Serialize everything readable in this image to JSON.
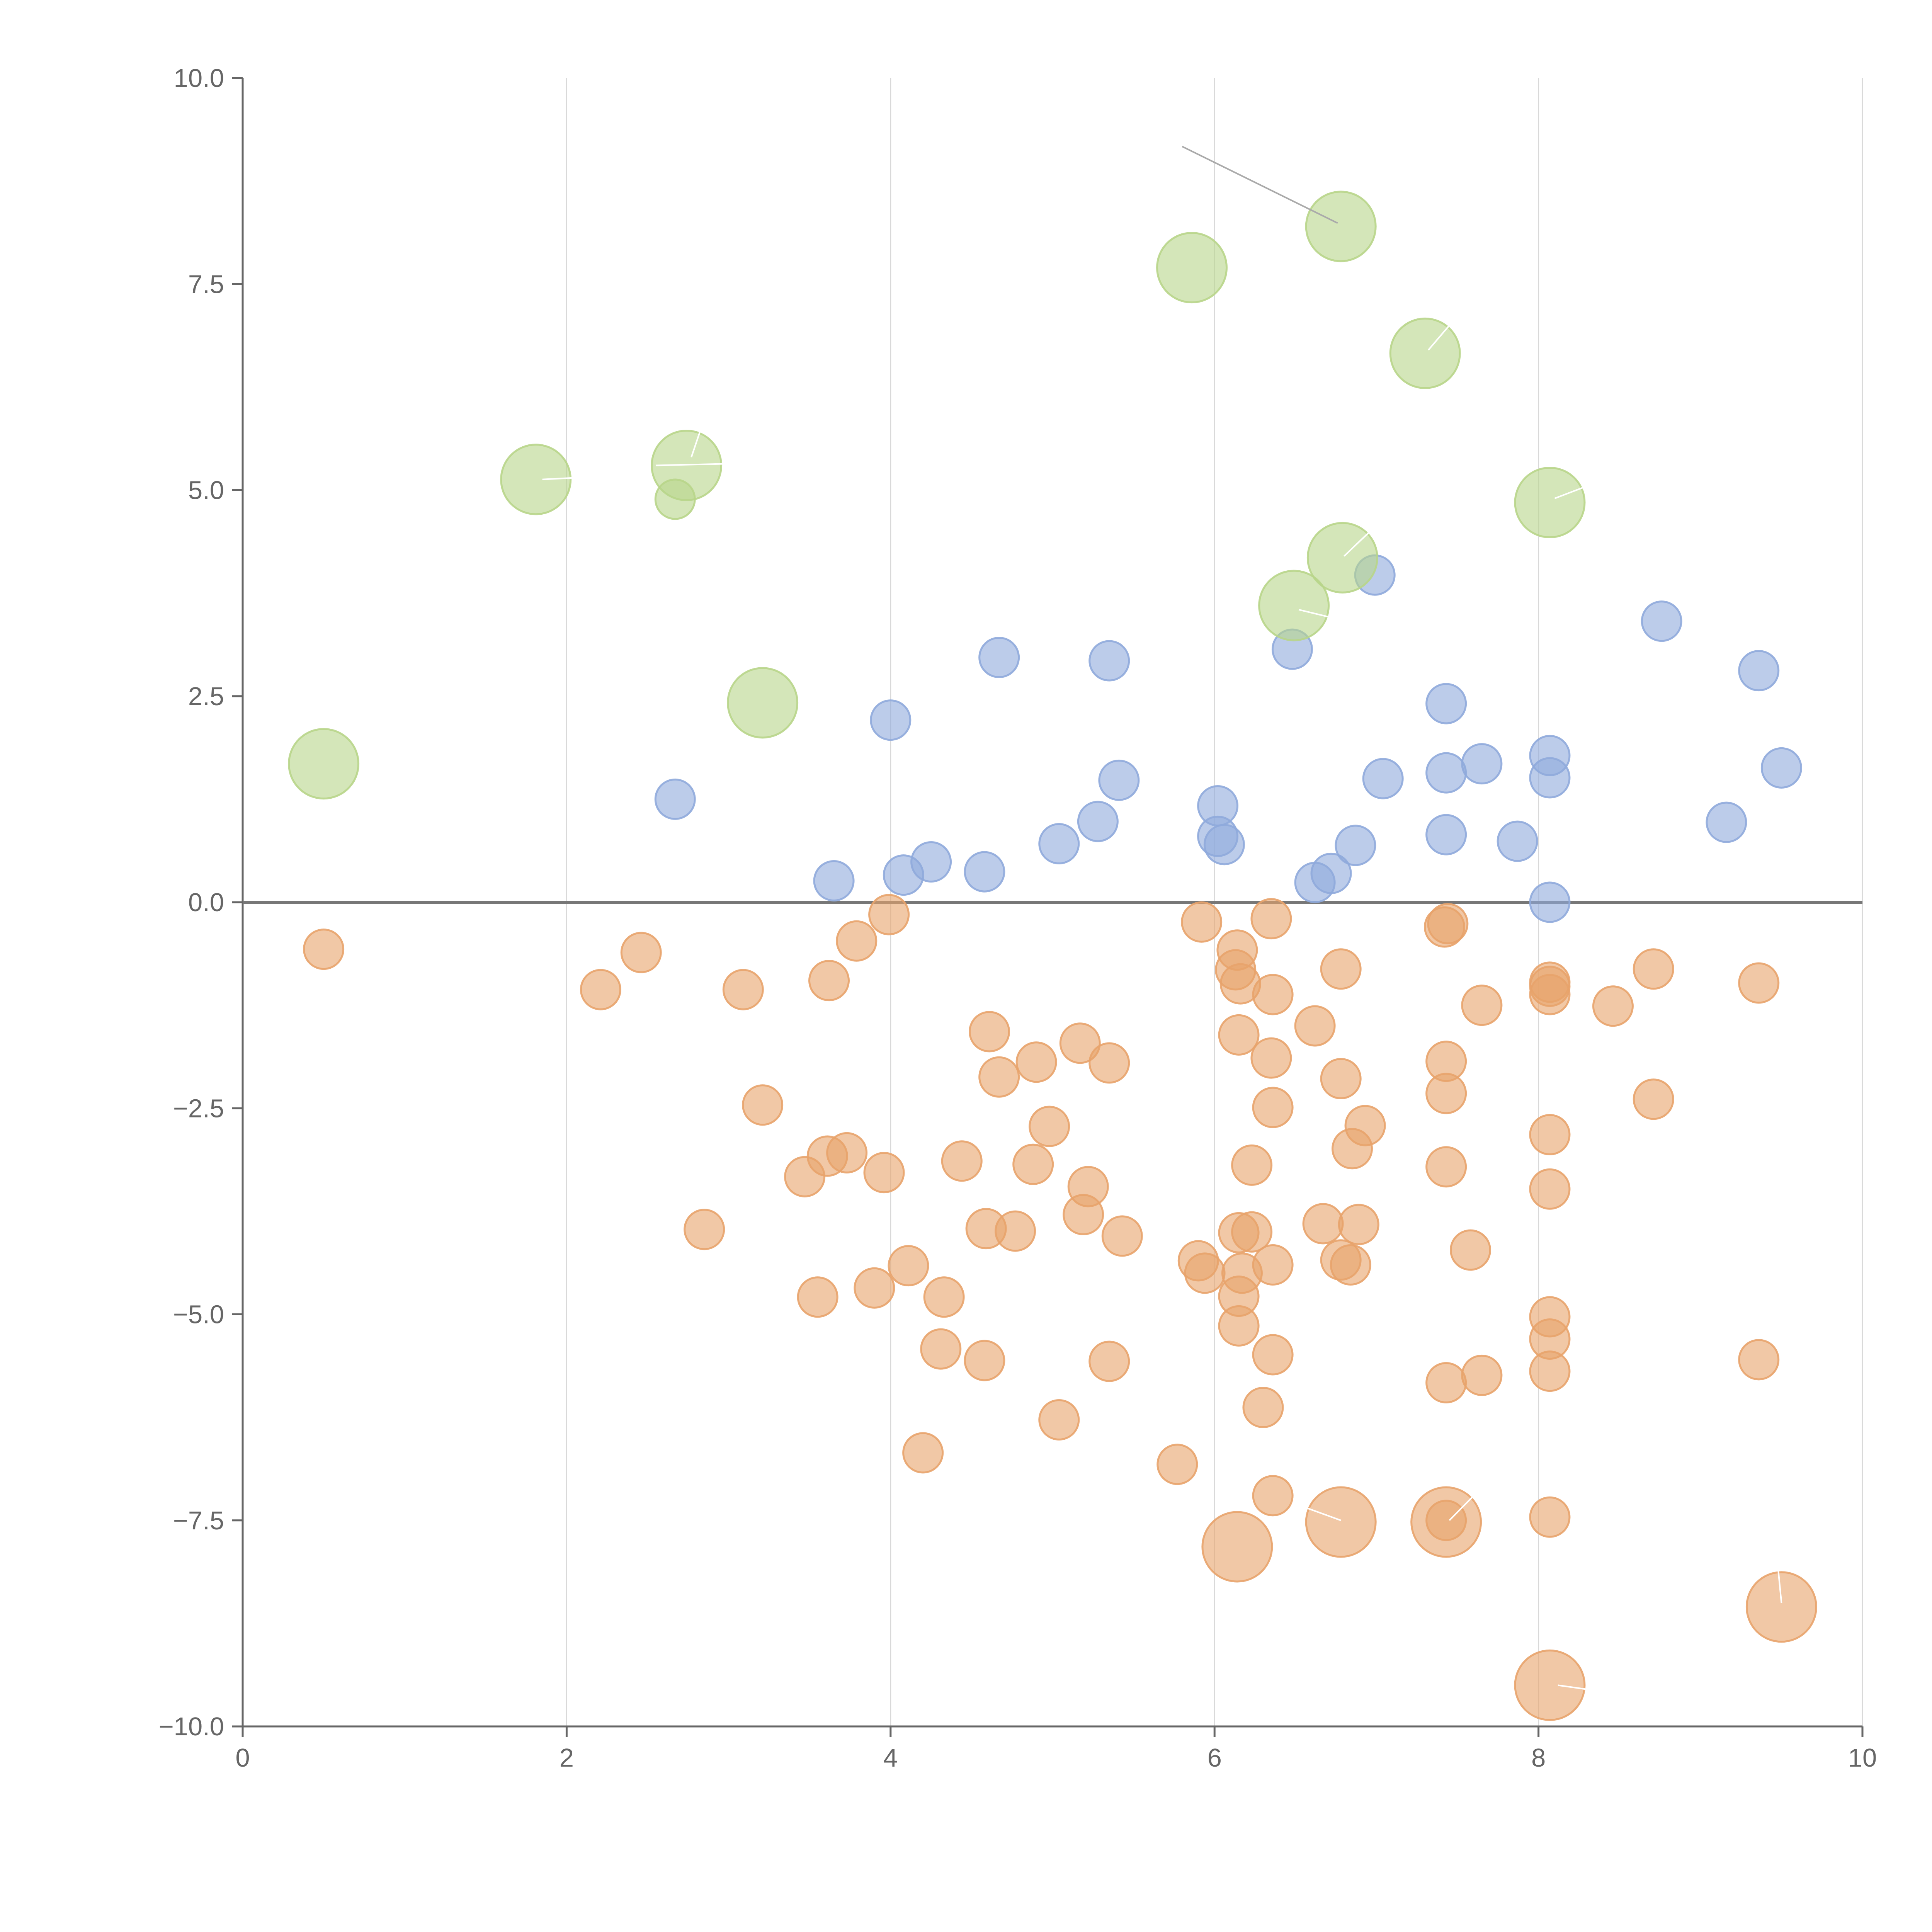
{
  "chart_data": {
    "type": "scatter",
    "title": "",
    "xlabel": "",
    "ylabel": "",
    "xlim": [
      0,
      10
    ],
    "ylim": [
      -10,
      10
    ],
    "x_ticks": [
      0,
      2,
      4,
      6,
      8,
      10
    ],
    "x_tick_labels": [
      "0",
      "2",
      "4",
      "6",
      "8",
      "10"
    ],
    "y_ticks": [
      10,
      7.5,
      5,
      2.5,
      0,
      -2.5,
      -5,
      -7.5,
      -10
    ],
    "y_tick_labels": [
      "10.0",
      "7.5",
      "5.0",
      "2.5",
      "0.0",
      "−2.5",
      "−5.0",
      "−7.5",
      "−10.0"
    ],
    "grid": "vertical",
    "zero_line": true,
    "legend": "none",
    "series": [
      {
        "name": "orange",
        "color": "#E8A36B",
        "points": [
          {
            "x": 0.5,
            "y": -0.57,
            "size": 1
          },
          {
            "x": 2.21,
            "y": -1.06,
            "size": 1
          },
          {
            "x": 2.46,
            "y": -0.61,
            "size": 1
          },
          {
            "x": 3.09,
            "y": -1.06,
            "size": 1
          },
          {
            "x": 3.62,
            "y": -0.95,
            "size": 1
          },
          {
            "x": 3.79,
            "y": -0.47,
            "size": 1
          },
          {
            "x": 3.99,
            "y": -0.15,
            "size": 1
          },
          {
            "x": 3.21,
            "y": -2.46,
            "size": 1
          },
          {
            "x": 2.85,
            "y": -3.97,
            "size": 1
          },
          {
            "x": 3.47,
            "y": -3.33,
            "size": 1
          },
          {
            "x": 3.61,
            "y": -3.08,
            "size": 1
          },
          {
            "x": 3.73,
            "y": -3.04,
            "size": 1
          },
          {
            "x": 3.96,
            "y": -3.28,
            "size": 1
          },
          {
            "x": 3.55,
            "y": -4.79,
            "size": 1
          },
          {
            "x": 3.9,
            "y": -4.68,
            "size": 1
          },
          {
            "x": 4.11,
            "y": -4.41,
            "size": 1
          },
          {
            "x": 4.33,
            "y": -4.79,
            "size": 1
          },
          {
            "x": 4.31,
            "y": -5.42,
            "size": 1
          },
          {
            "x": 4.2,
            "y": -6.68,
            "size": 1
          },
          {
            "x": 4.44,
            "y": -3.14,
            "size": 1
          },
          {
            "x": 4.61,
            "y": -1.57,
            "size": 1
          },
          {
            "x": 4.67,
            "y": -2.12,
            "size": 1
          },
          {
            "x": 4.9,
            "y": -1.94,
            "size": 1
          },
          {
            "x": 4.98,
            "y": -2.72,
            "size": 1
          },
          {
            "x": 4.88,
            "y": -3.18,
            "size": 1
          },
          {
            "x": 4.59,
            "y": -3.96,
            "size": 1
          },
          {
            "x": 4.77,
            "y": -3.99,
            "size": 1
          },
          {
            "x": 4.58,
            "y": -5.56,
            "size": 1
          },
          {
            "x": 5.04,
            "y": -6.28,
            "size": 1
          },
          {
            "x": 5.17,
            "y": -1.71,
            "size": 1
          },
          {
            "x": 5.35,
            "y": -1.95,
            "size": 1
          },
          {
            "x": 5.22,
            "y": -3.45,
            "size": 1
          },
          {
            "x": 5.19,
            "y": -3.79,
            "size": 1
          },
          {
            "x": 5.43,
            "y": -4.05,
            "size": 1
          },
          {
            "x": 5.35,
            "y": -5.57,
            "size": 1
          },
          {
            "x": 5.77,
            "y": -6.82,
            "size": 1
          },
          {
            "x": 5.92,
            "y": -0.24,
            "size": 1
          },
          {
            "x": 6.14,
            "y": -0.58,
            "size": 1
          },
          {
            "x": 6.13,
            "y": -0.82,
            "size": 1
          },
          {
            "x": 6.16,
            "y": -0.99,
            "size": 1
          },
          {
            "x": 6.35,
            "y": -0.2,
            "size": 1
          },
          {
            "x": 6.36,
            "y": -1.12,
            "size": 1
          },
          {
            "x": 6.15,
            "y": -1.61,
            "size": 1
          },
          {
            "x": 6.35,
            "y": -1.89,
            "size": 1
          },
          {
            "x": 6.36,
            "y": -2.49,
            "size": 1
          },
          {
            "x": 6.23,
            "y": -3.19,
            "size": 1
          },
          {
            "x": 6.15,
            "y": -4.01,
            "size": 1
          },
          {
            "x": 6.23,
            "y": -4.0,
            "size": 1
          },
          {
            "x": 5.9,
            "y": -4.35,
            "size": 1
          },
          {
            "x": 5.94,
            "y": -4.5,
            "size": 1
          },
          {
            "x": 6.17,
            "y": -4.5,
            "size": 1
          },
          {
            "x": 6.36,
            "y": -4.4,
            "size": 1
          },
          {
            "x": 6.15,
            "y": -4.78,
            "size": 1
          },
          {
            "x": 6.15,
            "y": -5.14,
            "size": 1
          },
          {
            "x": 6.36,
            "y": -5.49,
            "size": 1
          },
          {
            "x": 6.3,
            "y": -6.13,
            "size": 1
          },
          {
            "x": 6.36,
            "y": -7.2,
            "size": 1
          },
          {
            "x": 6.62,
            "y": -1.5,
            "size": 1
          },
          {
            "x": 6.78,
            "y": -0.81,
            "size": 1
          },
          {
            "x": 6.78,
            "y": -2.14,
            "size": 1
          },
          {
            "x": 6.93,
            "y": -2.71,
            "size": 1
          },
          {
            "x": 6.85,
            "y": -2.99,
            "size": 1
          },
          {
            "x": 6.67,
            "y": -3.9,
            "size": 1
          },
          {
            "x": 6.89,
            "y": -3.91,
            "size": 1
          },
          {
            "x": 6.78,
            "y": -4.34,
            "size": 1
          },
          {
            "x": 6.84,
            "y": -4.4,
            "size": 1
          },
          {
            "x": 7.42,
            "y": -0.3,
            "size": 1
          },
          {
            "x": 7.44,
            "y": -0.26,
            "size": 1
          },
          {
            "x": 7.65,
            "y": -1.25,
            "size": 1
          },
          {
            "x": 7.43,
            "y": -1.93,
            "size": 1
          },
          {
            "x": 7.43,
            "y": -2.32,
            "size": 1
          },
          {
            "x": 7.43,
            "y": -3.21,
            "size": 1
          },
          {
            "x": 7.58,
            "y": -4.22,
            "size": 1
          },
          {
            "x": 7.65,
            "y": -5.74,
            "size": 1
          },
          {
            "x": 7.43,
            "y": -5.83,
            "size": 1
          },
          {
            "x": 7.43,
            "y": -7.5,
            "size": 1
          },
          {
            "x": 8.07,
            "y": -0.97,
            "size": 1
          },
          {
            "x": 8.07,
            "y": -1.02,
            "size": 1
          },
          {
            "x": 8.07,
            "y": -1.12,
            "size": 1
          },
          {
            "x": 8.07,
            "y": -2.82,
            "size": 1
          },
          {
            "x": 8.07,
            "y": -3.48,
            "size": 1
          },
          {
            "x": 8.07,
            "y": -5.03,
            "size": 1
          },
          {
            "x": 8.07,
            "y": -5.3,
            "size": 1
          },
          {
            "x": 8.07,
            "y": -5.69,
            "size": 1
          },
          {
            "x": 8.07,
            "y": -7.46,
            "size": 1
          },
          {
            "x": 8.46,
            "y": -1.26,
            "size": 1
          },
          {
            "x": 8.71,
            "y": -0.81,
            "size": 1
          },
          {
            "x": 8.71,
            "y": -2.39,
            "size": 1
          },
          {
            "x": 9.36,
            "y": -0.98,
            "size": 1
          },
          {
            "x": 9.36,
            "y": -5.55,
            "size": 1
          },
          {
            "x": 6.14,
            "y": -7.82,
            "size": 2
          },
          {
            "x": 6.78,
            "y": -7.52,
            "size": 2
          },
          {
            "x": 7.43,
            "y": -7.52,
            "size": 2
          },
          {
            "x": 9.5,
            "y": -8.55,
            "size": 2
          },
          {
            "x": 8.07,
            "y": -9.5,
            "size": 2
          }
        ]
      },
      {
        "name": "blue",
        "color": "#8FAADC",
        "points": [
          {
            "x": 2.67,
            "y": 1.25,
            "size": 1
          },
          {
            "x": 3.65,
            "y": 0.26,
            "size": 1
          },
          {
            "x": 4.08,
            "y": 0.33,
            "size": 1
          },
          {
            "x": 4.25,
            "y": 0.49,
            "size": 1
          },
          {
            "x": 4.0,
            "y": 2.21,
            "size": 1
          },
          {
            "x": 4.58,
            "y": 0.37,
            "size": 1
          },
          {
            "x": 4.67,
            "y": 2.97,
            "size": 1
          },
          {
            "x": 5.04,
            "y": 0.71,
            "size": 1
          },
          {
            "x": 5.28,
            "y": 0.98,
            "size": 1
          },
          {
            "x": 5.41,
            "y": 1.48,
            "size": 1
          },
          {
            "x": 5.35,
            "y": 2.93,
            "size": 1
          },
          {
            "x": 6.02,
            "y": 1.17,
            "size": 1
          },
          {
            "x": 6.02,
            "y": 0.8,
            "size": 1
          },
          {
            "x": 6.06,
            "y": 0.7,
            "size": 1
          },
          {
            "x": 6.48,
            "y": 3.07,
            "size": 1
          },
          {
            "x": 6.62,
            "y": 0.24,
            "size": 1
          },
          {
            "x": 6.72,
            "y": 0.35,
            "size": 1
          },
          {
            "x": 6.87,
            "y": 0.69,
            "size": 1
          },
          {
            "x": 6.99,
            "y": 3.97,
            "size": 1
          },
          {
            "x": 7.04,
            "y": 1.5,
            "size": 1
          },
          {
            "x": 7.43,
            "y": 2.41,
            "size": 1
          },
          {
            "x": 7.43,
            "y": 1.57,
            "size": 1
          },
          {
            "x": 7.43,
            "y": 0.82,
            "size": 1
          },
          {
            "x": 7.65,
            "y": 1.68,
            "size": 1
          },
          {
            "x": 7.87,
            "y": 0.74,
            "size": 1
          },
          {
            "x": 8.07,
            "y": 1.78,
            "size": 1
          },
          {
            "x": 8.07,
            "y": 1.51,
            "size": 1
          },
          {
            "x": 8.07,
            "y": 0.0,
            "size": 1
          },
          {
            "x": 8.76,
            "y": 3.41,
            "size": 1
          },
          {
            "x": 9.16,
            "y": 0.97,
            "size": 1
          },
          {
            "x": 9.36,
            "y": 2.81,
            "size": 1
          },
          {
            "x": 9.5,
            "y": 1.63,
            "size": 1
          }
        ]
      },
      {
        "name": "green",
        "color": "#B8D58A",
        "points": [
          {
            "x": 0.5,
            "y": 1.68,
            "size": 2
          },
          {
            "x": 1.81,
            "y": 5.13,
            "size": 2
          },
          {
            "x": 2.74,
            "y": 5.3,
            "size": 2
          },
          {
            "x": 2.67,
            "y": 4.89,
            "size": 1
          },
          {
            "x": 3.21,
            "y": 2.42,
            "size": 2
          },
          {
            "x": 5.86,
            "y": 7.7,
            "size": 2
          },
          {
            "x": 6.78,
            "y": 8.2,
            "size": 2
          },
          {
            "x": 7.3,
            "y": 6.66,
            "size": 2
          },
          {
            "x": 8.07,
            "y": 4.85,
            "size": 2
          },
          {
            "x": 6.79,
            "y": 4.18,
            "size": 2
          },
          {
            "x": 6.49,
            "y": 3.6,
            "size": 2
          }
        ]
      }
    ],
    "annotations": [
      {
        "from": [
          5.8,
          9.17
        ],
        "to": [
          6.76,
          8.24
        ],
        "color": "#aaaaaa"
      },
      {
        "from": [
          1.85,
          5.13
        ],
        "to": [
          2.05,
          5.15
        ],
        "color": "#ffffff"
      },
      {
        "from": [
          2.55,
          5.3
        ],
        "to": [
          3.0,
          5.32
        ],
        "color": "#ffffff"
      },
      {
        "from": [
          2.77,
          5.4
        ],
        "to": [
          2.83,
          5.75
        ],
        "color": "#ffffff"
      },
      {
        "from": [
          7.32,
          6.7
        ],
        "to": [
          7.45,
          7.0
        ],
        "color": "#ffffff"
      },
      {
        "from": [
          8.1,
          4.9
        ],
        "to": [
          8.3,
          5.05
        ],
        "color": "#ffffff"
      },
      {
        "from": [
          6.8,
          4.2
        ],
        "to": [
          6.96,
          4.5
        ],
        "color": "#ffffff"
      },
      {
        "from": [
          6.52,
          3.55
        ],
        "to": [
          6.73,
          3.45
        ],
        "color": "#ffffff"
      },
      {
        "from": [
          6.78,
          -7.5
        ],
        "to": [
          6.5,
          -7.3
        ],
        "color": "#ffffff"
      },
      {
        "from": [
          7.45,
          -7.5
        ],
        "to": [
          7.6,
          -7.2
        ],
        "color": "#ffffff"
      },
      {
        "from": [
          9.5,
          -8.5
        ],
        "to": [
          9.48,
          -8.1
        ],
        "color": "#ffffff"
      },
      {
        "from": [
          8.12,
          -9.5
        ],
        "to": [
          8.3,
          -9.55
        ],
        "color": "#ffffff"
      }
    ]
  }
}
